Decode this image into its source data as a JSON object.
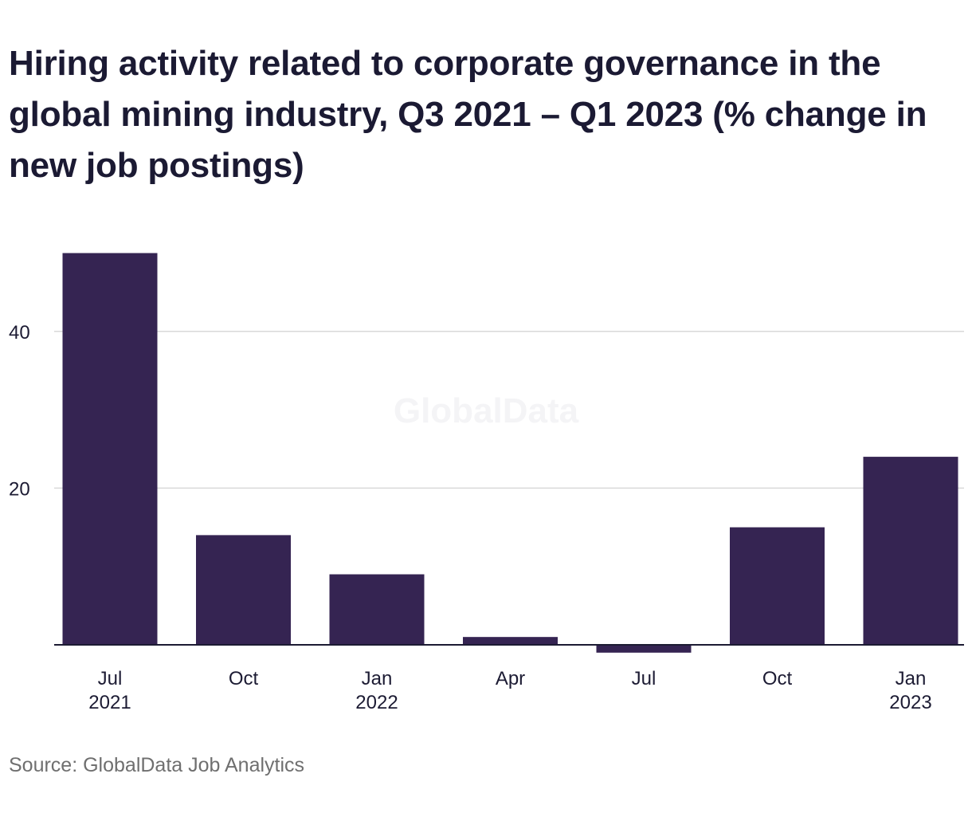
{
  "chart_data": {
    "type": "bar",
    "title": "Hiring activity related to corporate governance in the global mining industry, Q3 2021 – Q1 2023 (% change in new job postings)",
    "categories": [
      [
        "Jul",
        "2021"
      ],
      [
        "Oct",
        ""
      ],
      [
        "Jan",
        "2022"
      ],
      [
        "Apr",
        ""
      ],
      [
        "Jul",
        ""
      ],
      [
        "Oct",
        ""
      ],
      [
        "Jan",
        "2023"
      ]
    ],
    "values": [
      50,
      14,
      9,
      1,
      -1,
      15,
      24
    ],
    "ylim": [
      -1.5,
      56
    ],
    "yticks": [
      20,
      40
    ],
    "grid": true,
    "bar_color": "#352452",
    "watermark": "GlobalData",
    "source": "Source: GlobalData Job Analytics"
  }
}
